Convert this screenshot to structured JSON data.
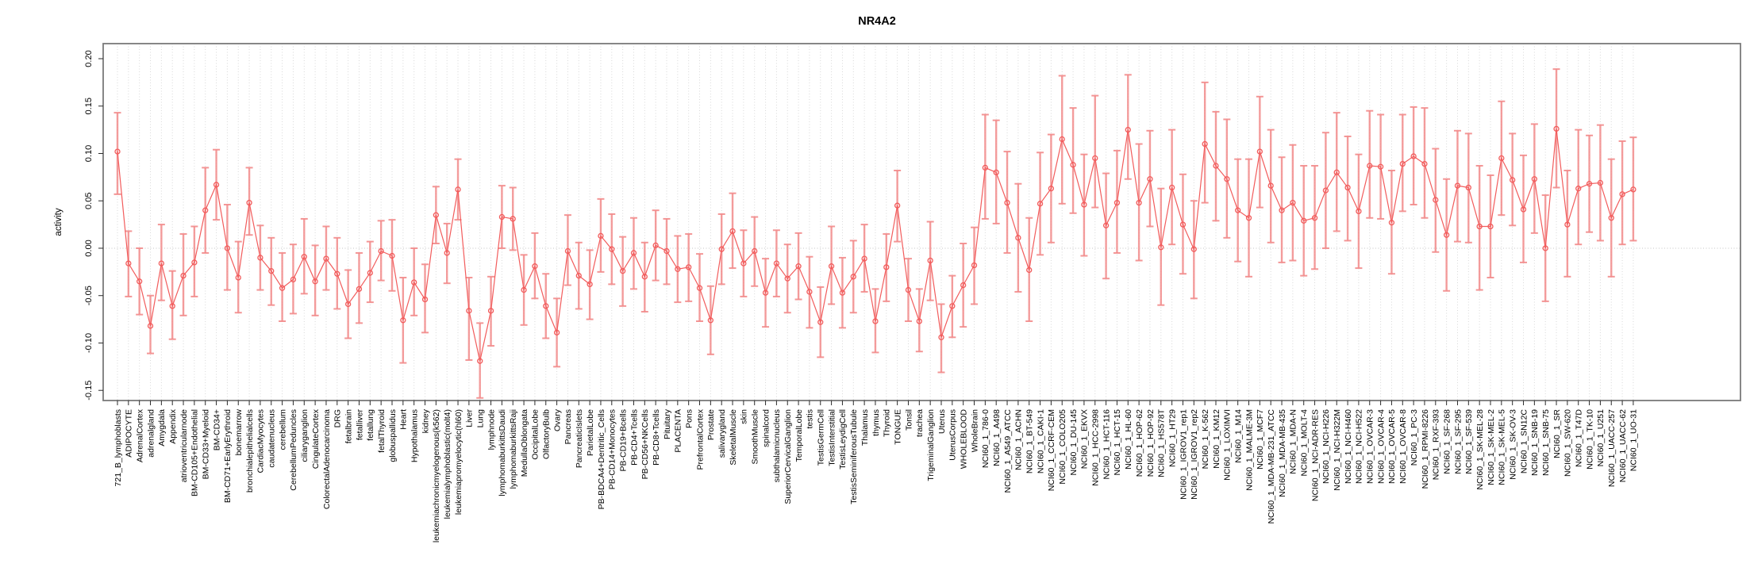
{
  "figure": {
    "title": "NR4A2"
  },
  "chart_data": {
    "type": "line",
    "subtype": "points-with-error-bars",
    "title": "NR4A2",
    "xlabel": "",
    "ylabel": "activity",
    "ylim": [
      -0.1607,
      0.2159
    ],
    "y_ticks": [
      -0.15,
      -0.1,
      -0.05,
      0.0,
      0.05,
      0.1,
      0.15,
      0.2
    ],
    "y_tick_labels": [
      "-0.15",
      "-0.10",
      "-0.05",
      "0.00",
      "0.05",
      "0.10",
      "0.15",
      "0.20"
    ],
    "grid": "vertical-dotted-per-category, dotted-zero-line",
    "legend": "none",
    "marker": "open-circle",
    "point_color": "#F25C5C",
    "errorbar_color": "#F28B8B",
    "box_color": "#7A7A7A",
    "grid_color": "#D8D8D8",
    "categories": [
      "721_B_lymphoblasts",
      "ADIPOCYTE",
      "AdrenalCortex",
      "adrenalgland",
      "Amygdala",
      "Appendix",
      "atrioventricularnode",
      "BM-CD105+Endothelial",
      "BM-CD33+Myeloid",
      "BM-CD34+",
      "BM-CD71+EarlyErythroid",
      "bonemarrow",
      "bronchialepithelialcells",
      "CardiacMyocytes",
      "caudatenucleus",
      "cerebellum",
      "CerebellumPeduncles",
      "ciliaryganglion",
      "CingulateCortex",
      "ColorectalAdenocarcinoma",
      "DRG",
      "fetalbrain",
      "fetalliver",
      "fetallung",
      "fetalThyroid",
      "globuspallidus",
      "Heart",
      "Hypothalamus",
      "kidney",
      "leukemiachronicmyelogenous(k562)",
      "leukemialymphoblastic(molt4)",
      "leukemiapromyelocytic(hl60)",
      "Liver",
      "Lung",
      "lymphnode",
      "lymphomaburkittsDaudi",
      "lymphomaburkittsRaji",
      "MedullaOblongata",
      "OccipitalLobe",
      "OlfactoryBulb",
      "Ovary",
      "Pancreas",
      "PancreaticIslets",
      "ParietalLobe",
      "PB-BDCA4+Dentritic_Cells",
      "PB-CD14+Monocytes",
      "PB-CD19+Bcells",
      "PB-CD4+Tcells",
      "PB-CD56+NKCells",
      "PB-CD8+Tcells",
      "Pituitary",
      "PLACENTA",
      "Pons",
      "PrefrontalCortex",
      "Prostate",
      "salivarygland",
      "SkeletalMuscle",
      "skin",
      "SmoothMuscle",
      "spinalcord",
      "subthalamicnucleus",
      "SuperiorCervicalGanglion",
      "TemporalLobe",
      "testis",
      "TestisGermCell",
      "TestisInterstitial",
      "TestisLeydigCell",
      "TestisSeminiferousTubule",
      "Thalamus",
      "thymus",
      "Thyroid",
      "TONGUE",
      "Tonsil",
      "trachea",
      "TrigeminalGanglion",
      "Uterus",
      "UterusCorpus",
      "WHOLEBLOOD",
      "WholeBrain",
      "NCI60_1_786-0",
      "NCI60_1_A498",
      "NCI60_1_A549_ATCC",
      "NCI60_1_ACHN",
      "NCI60_1_BT-549",
      "NCI60_1_CAKI-1",
      "NCI60_1_CCRF-CEM",
      "NCI60_1_COLO205",
      "NCI60_1_DU-145",
      "NCI60_1_EKVX",
      "NCI60_1_HCC-2998",
      "NCI60_1_HCT-116",
      "NCI60_1_HCT-15",
      "NCI60_1_HL-60",
      "NCI60_1_HOP-62",
      "NCI60_1_HOP-92",
      "NCI60_1_HS578T",
      "NCI60_1_HT29",
      "NCI60_1_IGROV1_rep1",
      "NCI60_1_IGROV1_rep2",
      "NCI60_1_K-562",
      "NCI60_1_KM12",
      "NCI60_1_LOXIMVI",
      "NCI60_1_M14",
      "NCI60_1_MALME-3M",
      "NCI60_1_MCF7",
      "NCI60_1_MDA-MB-231_ATCC",
      "NCI60_1_MDA-MB-435",
      "NCI60_1_MDA-N",
      "NCI60_1_MOLT-4",
      "NCI60_1_NCI-ADR-RES",
      "NCI60_1_NCI-H226",
      "NCI60_1_NCI-H322M",
      "NCI60_1_NCI-H460",
      "NCI60_1_NCI-H522",
      "NCI60_1_OVCAR-3",
      "NCI60_1_OVCAR-4",
      "NCI60_1_OVCAR-5",
      "NCI60_1_OVCAR-8",
      "NCI60_1_PC-3",
      "NCI60_1_RPMI-8226",
      "NCI60_1_RXF-393",
      "NCI60_1_SF-268",
      "NCI60_1_SF-295",
      "NCI60_1_SF-539",
      "NCI60_1_SK-MEL-28",
      "NCI60_1_SK-MEL-2",
      "NCI60_1_SK-MEL-5",
      "NCI60_1_SK-OV-3",
      "NCI60_1_SN12C",
      "NCI60_1_SNB-19",
      "NCI60_1_SNB-75",
      "NCI60_1_SR",
      "NCI60_1_SW-620",
      "NCI60_1_T47D",
      "NCI60_1_TK-10",
      "NCI60_1_U251",
      "NCI60_1_UACC-257",
      "NCI60_1_UACC-62",
      "NCI60_1_UO-31"
    ],
    "values": [
      0.102,
      -0.016,
      -0.035,
      -0.082,
      -0.016,
      -0.061,
      -0.029,
      -0.015,
      0.04,
      0.067,
      0.0,
      -0.031,
      0.048,
      -0.01,
      -0.024,
      -0.042,
      -0.033,
      -0.009,
      -0.035,
      -0.011,
      -0.027,
      -0.059,
      -0.043,
      -0.026,
      -0.003,
      -0.008,
      -0.076,
      -0.036,
      -0.054,
      0.035,
      -0.005,
      0.062,
      -0.066,
      -0.119,
      -0.066,
      0.033,
      0.031,
      -0.044,
      -0.019,
      -0.061,
      -0.089,
      -0.003,
      -0.029,
      -0.038,
      0.013,
      -0.001,
      -0.024,
      -0.005,
      -0.03,
      0.003,
      -0.003,
      -0.022,
      -0.02,
      -0.042,
      -0.076,
      -0.001,
      0.018,
      -0.016,
      -0.003,
      -0.047,
      -0.016,
      -0.032,
      -0.019,
      -0.046,
      -0.078,
      -0.019,
      -0.047,
      -0.03,
      -0.011,
      -0.077,
      -0.02,
      0.045,
      -0.044,
      -0.077,
      -0.013,
      -0.094,
      -0.061,
      -0.039,
      -0.018,
      0.085,
      0.08,
      0.048,
      0.011,
      -0.023,
      0.047,
      0.063,
      0.115,
      0.088,
      0.046,
      0.095,
      0.024,
      0.048,
      0.125,
      0.048,
      0.073,
      0.001,
      0.064,
      0.025,
      -0.001,
      0.11,
      0.087,
      0.073,
      0.04,
      0.032,
      0.102,
      0.066,
      0.04,
      0.048,
      0.029,
      0.032,
      0.061,
      0.08,
      0.064,
      0.039,
      0.087,
      0.086,
      0.027,
      0.089,
      0.097,
      0.089,
      0.051,
      0.014,
      0.066,
      0.064,
      0.023,
      0.023,
      0.095,
      0.072,
      0.041,
      0.073,
      0.0,
      0.126,
      0.025,
      0.063,
      0.068,
      0.069,
      0.032,
      0.057,
      0.062
    ],
    "err_lo": [
      0.057,
      -0.051,
      -0.07,
      -0.111,
      -0.055,
      -0.096,
      -0.071,
      -0.051,
      -0.005,
      0.03,
      -0.044,
      -0.068,
      0.014,
      -0.044,
      -0.06,
      -0.077,
      -0.069,
      -0.048,
      -0.071,
      -0.044,
      -0.064,
      -0.095,
      -0.079,
      -0.057,
      -0.034,
      -0.045,
      -0.121,
      -0.071,
      -0.089,
      0.005,
      -0.037,
      0.03,
      -0.118,
      -0.158,
      -0.103,
      0.0,
      -0.002,
      -0.081,
      -0.053,
      -0.095,
      -0.125,
      -0.039,
      -0.064,
      -0.075,
      -0.025,
      -0.038,
      -0.061,
      -0.043,
      -0.067,
      -0.034,
      -0.038,
      -0.057,
      -0.056,
      -0.077,
      -0.112,
      -0.038,
      -0.021,
      -0.051,
      -0.04,
      -0.083,
      -0.051,
      -0.068,
      -0.054,
      -0.084,
      -0.115,
      -0.059,
      -0.084,
      -0.068,
      -0.046,
      -0.11,
      -0.056,
      0.007,
      -0.077,
      -0.109,
      -0.055,
      -0.131,
      -0.094,
      -0.083,
      -0.059,
      0.031,
      0.026,
      -0.005,
      -0.046,
      -0.077,
      -0.007,
      0.006,
      0.047,
      0.037,
      -0.008,
      0.043,
      -0.032,
      -0.005,
      0.073,
      -0.013,
      0.023,
      -0.06,
      0.004,
      -0.027,
      -0.053,
      0.048,
      0.029,
      0.011,
      -0.014,
      -0.03,
      0.043,
      0.006,
      -0.015,
      -0.013,
      -0.029,
      -0.022,
      0.0,
      0.018,
      0.008,
      -0.021,
      0.032,
      0.031,
      -0.027,
      0.039,
      0.046,
      0.032,
      -0.004,
      -0.045,
      0.007,
      0.006,
      -0.044,
      -0.031,
      0.035,
      0.024,
      -0.015,
      0.016,
      -0.056,
      0.064,
      -0.03,
      0.004,
      0.017,
      0.008,
      -0.03,
      0.004,
      0.008
    ],
    "err_hi": [
      0.143,
      0.018,
      0.0,
      -0.05,
      0.025,
      -0.024,
      0.015,
      0.023,
      0.085,
      0.104,
      0.046,
      0.007,
      0.085,
      0.024,
      0.011,
      -0.005,
      0.004,
      0.031,
      0.003,
      0.023,
      0.011,
      -0.023,
      -0.005,
      0.007,
      0.029,
      0.03,
      -0.031,
      0.0,
      -0.017,
      0.065,
      0.026,
      0.094,
      -0.031,
      -0.079,
      -0.03,
      0.066,
      0.064,
      -0.007,
      0.016,
      -0.027,
      -0.053,
      0.035,
      0.006,
      -0.002,
      0.052,
      0.036,
      0.012,
      0.032,
      0.006,
      0.04,
      0.031,
      0.013,
      0.015,
      -0.006,
      -0.04,
      0.036,
      0.058,
      0.019,
      0.033,
      -0.011,
      0.019,
      0.004,
      0.016,
      -0.009,
      -0.041,
      0.023,
      -0.01,
      0.008,
      0.025,
      -0.043,
      0.015,
      0.082,
      -0.011,
      -0.043,
      0.028,
      -0.059,
      -0.029,
      0.005,
      0.022,
      0.141,
      0.135,
      0.102,
      0.068,
      0.032,
      0.101,
      0.12,
      0.182,
      0.148,
      0.099,
      0.161,
      0.079,
      0.103,
      0.183,
      0.11,
      0.124,
      0.063,
      0.125,
      0.078,
      0.05,
      0.175,
      0.144,
      0.136,
      0.094,
      0.094,
      0.16,
      0.125,
      0.096,
      0.109,
      0.087,
      0.087,
      0.122,
      0.143,
      0.118,
      0.099,
      0.145,
      0.141,
      0.082,
      0.141,
      0.149,
      0.148,
      0.105,
      0.073,
      0.124,
      0.121,
      0.087,
      0.077,
      0.155,
      0.121,
      0.098,
      0.131,
      0.056,
      0.189,
      0.082,
      0.125,
      0.119,
      0.13,
      0.094,
      0.113,
      0.117
    ]
  }
}
